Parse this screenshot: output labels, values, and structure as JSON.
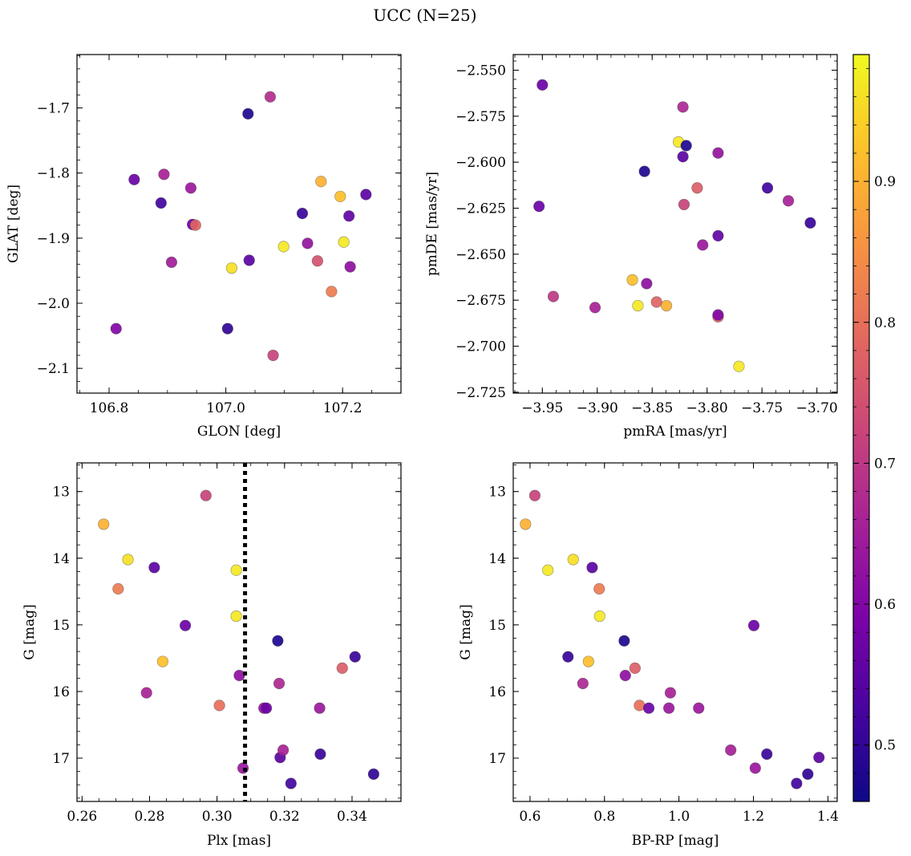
{
  "figure": {
    "title": "UCC (N=25)",
    "colormap": "plasma",
    "colorbar": {
      "range": [
        0.46,
        0.99
      ],
      "ticks": [
        0.5,
        0.6,
        0.7,
        0.8,
        0.9
      ],
      "tick_labels": [
        "0.5",
        "0.6",
        "0.7",
        "0.8",
        "0.9"
      ]
    }
  },
  "chart_data": [
    {
      "type": "scatter",
      "id": "panel-glon-glat",
      "xlabel": "GLON [deg]",
      "ylabel": "GLAT [deg]",
      "xlim": [
        106.745,
        107.3
      ],
      "ylim": [
        -2.138,
        -1.618
      ],
      "xticks": [
        106.8,
        107.0,
        107.2
      ],
      "xtick_labels": [
        "106.8",
        "107.0",
        "107.2"
      ],
      "yticks": [
        -2.1,
        -2.0,
        -1.9,
        -1.8,
        -1.7
      ],
      "ytick_labels": [
        "−2.1",
        "−2.0",
        "−1.9",
        "−1.8",
        "−1.7"
      ],
      "invert_y": false,
      "points": [
        {
          "x": 106.812,
          "y": -2.039,
          "c": 0.6
        },
        {
          "x": 106.843,
          "y": -1.81,
          "c": 0.57
        },
        {
          "x": 106.889,
          "y": -1.846,
          "c": 0.52
        },
        {
          "x": 106.894,
          "y": -1.802,
          "c": 0.66
        },
        {
          "x": 106.907,
          "y": -1.937,
          "c": 0.65
        },
        {
          "x": 106.94,
          "y": -1.823,
          "c": 0.64
        },
        {
          "x": 106.943,
          "y": -1.879,
          "c": 0.57
        },
        {
          "x": 106.948,
          "y": -1.88,
          "c": 0.78
        },
        {
          "x": 107.003,
          "y": -2.039,
          "c": 0.5
        },
        {
          "x": 107.01,
          "y": -1.946,
          "c": 0.96
        },
        {
          "x": 107.038,
          "y": -1.709,
          "c": 0.48
        },
        {
          "x": 107.04,
          "y": -1.934,
          "c": 0.55
        },
        {
          "x": 107.076,
          "y": -1.683,
          "c": 0.68
        },
        {
          "x": 107.081,
          "y": -2.08,
          "c": 0.72
        },
        {
          "x": 107.099,
          "y": -1.913,
          "c": 0.97
        },
        {
          "x": 107.131,
          "y": -1.862,
          "c": 0.51
        },
        {
          "x": 107.14,
          "y": -1.908,
          "c": 0.63
        },
        {
          "x": 107.157,
          "y": -1.935,
          "c": 0.75
        },
        {
          "x": 107.163,
          "y": -1.813,
          "c": 0.9
        },
        {
          "x": 107.181,
          "y": -1.982,
          "c": 0.82
        },
        {
          "x": 107.196,
          "y": -1.836,
          "c": 0.92
        },
        {
          "x": 107.202,
          "y": -1.906,
          "c": 0.97
        },
        {
          "x": 107.211,
          "y": -1.866,
          "c": 0.56
        },
        {
          "x": 107.213,
          "y": -1.944,
          "c": 0.62
        },
        {
          "x": 107.24,
          "y": -1.833,
          "c": 0.55
        }
      ]
    },
    {
      "type": "scatter",
      "id": "panel-pmra-pmde",
      "xlabel": "pmRA [mas/yr]",
      "ylabel": "pmDE [mas/yr]",
      "xlim": [
        -3.9765,
        -3.6815
      ],
      "ylim": [
        -2.7255,
        -2.5415
      ],
      "xticks": [
        -3.95,
        -3.9,
        -3.85,
        -3.8,
        -3.75,
        -3.7
      ],
      "xtick_labels": [
        "−3.95",
        "−3.90",
        "−3.85",
        "−3.80",
        "−3.75",
        "−3.70"
      ],
      "yticks": [
        -2.725,
        -2.7,
        -2.675,
        -2.65,
        -2.625,
        -2.6,
        -2.575,
        -2.55
      ],
      "ytick_labels": [
        "−2.725",
        "−2.700",
        "−2.675",
        "−2.650",
        "−2.625",
        "−2.600",
        "−2.575",
        "−2.550"
      ],
      "invert_y": false,
      "points": [
        {
          "x": -3.95,
          "y": -2.558,
          "c": 0.57
        },
        {
          "x": -3.953,
          "y": -2.624,
          "c": 0.57
        },
        {
          "x": -3.94,
          "y": -2.673,
          "c": 0.7
        },
        {
          "x": -3.902,
          "y": -2.679,
          "c": 0.66
        },
        {
          "x": -3.868,
          "y": -2.664,
          "c": 0.92
        },
        {
          "x": -3.863,
          "y": -2.678,
          "c": 0.97
        },
        {
          "x": -3.857,
          "y": -2.605,
          "c": 0.48
        },
        {
          "x": -3.855,
          "y": -2.666,
          "c": 0.62
        },
        {
          "x": -3.846,
          "y": -2.676,
          "c": 0.78
        },
        {
          "x": -3.837,
          "y": -2.678,
          "c": 0.9
        },
        {
          "x": -3.826,
          "y": -2.589,
          "c": 0.97
        },
        {
          "x": -3.822,
          "y": -2.57,
          "c": 0.67
        },
        {
          "x": -3.822,
          "y": -2.597,
          "c": 0.55
        },
        {
          "x": -3.821,
          "y": -2.623,
          "c": 0.72
        },
        {
          "x": -3.819,
          "y": -2.591,
          "c": 0.48
        },
        {
          "x": -3.809,
          "y": -2.614,
          "c": 0.77
        },
        {
          "x": -3.804,
          "y": -2.645,
          "c": 0.64
        },
        {
          "x": -3.79,
          "y": -2.595,
          "c": 0.63
        },
        {
          "x": -3.79,
          "y": -2.64,
          "c": 0.56
        },
        {
          "x": -3.79,
          "y": -2.684,
          "c": 0.78
        },
        {
          "x": -3.79,
          "y": -2.683,
          "c": 0.6
        },
        {
          "x": -3.771,
          "y": -2.711,
          "c": 0.97
        },
        {
          "x": -3.745,
          "y": -2.614,
          "c": 0.52
        },
        {
          "x": -3.726,
          "y": -2.621,
          "c": 0.66
        },
        {
          "x": -3.706,
          "y": -2.633,
          "c": 0.51
        }
      ]
    },
    {
      "type": "scatter",
      "id": "panel-plx-g",
      "xlabel": "Plx [mas]",
      "ylabel": "G [mag]",
      "xlim": [
        0.2585,
        0.3545
      ],
      "ylim": [
        12.57,
        17.65
      ],
      "xticks": [
        0.26,
        0.28,
        0.3,
        0.32,
        0.34
      ],
      "xtick_labels": [
        "0.26",
        "0.28",
        "0.30",
        "0.32",
        "0.34"
      ],
      "yticks": [
        13,
        14,
        15,
        16,
        17
      ],
      "ytick_labels": [
        "13",
        "14",
        "15",
        "16",
        "17"
      ],
      "invert_y": true,
      "vline": 0.3083,
      "points": [
        {
          "x": 0.2664,
          "y": 13.49,
          "c": 0.9
        },
        {
          "x": 0.2736,
          "y": 14.02,
          "c": 0.96
        },
        {
          "x": 0.2707,
          "y": 14.46,
          "c": 0.82
        },
        {
          "x": 0.2814,
          "y": 14.14,
          "c": 0.55
        },
        {
          "x": 0.2839,
          "y": 15.55,
          "c": 0.92
        },
        {
          "x": 0.2906,
          "y": 15.01,
          "c": 0.57
        },
        {
          "x": 0.2791,
          "y": 16.02,
          "c": 0.66
        },
        {
          "x": 0.2967,
          "y": 13.06,
          "c": 0.72
        },
        {
          "x": 0.3007,
          "y": 16.21,
          "c": 0.8
        },
        {
          "x": 0.3057,
          "y": 14.18,
          "c": 0.97
        },
        {
          "x": 0.3057,
          "y": 14.87,
          "c": 0.97
        },
        {
          "x": 0.3066,
          "y": 15.76,
          "c": 0.62
        },
        {
          "x": 0.3077,
          "y": 17.15,
          "c": 0.64
        },
        {
          "x": 0.3139,
          "y": 16.25,
          "c": 0.64
        },
        {
          "x": 0.3146,
          "y": 16.25,
          "c": 0.57
        },
        {
          "x": 0.318,
          "y": 15.24,
          "c": 0.48
        },
        {
          "x": 0.3184,
          "y": 15.88,
          "c": 0.67
        },
        {
          "x": 0.3187,
          "y": 16.99,
          "c": 0.55
        },
        {
          "x": 0.3196,
          "y": 16.88,
          "c": 0.66
        },
        {
          "x": 0.3219,
          "y": 17.38,
          "c": 0.52
        },
        {
          "x": 0.3304,
          "y": 16.25,
          "c": 0.64
        },
        {
          "x": 0.3306,
          "y": 16.94,
          "c": 0.51
        },
        {
          "x": 0.3371,
          "y": 15.65,
          "c": 0.77
        },
        {
          "x": 0.3409,
          "y": 15.48,
          "c": 0.51
        },
        {
          "x": 0.3464,
          "y": 17.24,
          "c": 0.5
        }
      ]
    },
    {
      "type": "scatter",
      "id": "panel-bprp-g",
      "xlabel": "BP-RP [mag]",
      "ylabel": "G [mag]",
      "xlim": [
        0.555,
        1.425
      ],
      "ylim": [
        12.57,
        17.65
      ],
      "xticks": [
        0.6,
        0.8,
        1.0,
        1.2,
        1.4
      ],
      "xtick_labels": [
        "0.6",
        "0.8",
        "1.0",
        "1.2",
        "1.4"
      ],
      "yticks": [
        13,
        14,
        15,
        16,
        17
      ],
      "ytick_labels": [
        "13",
        "14",
        "15",
        "16",
        "17"
      ],
      "invert_y": true,
      "points": [
        {
          "x": 0.588,
          "y": 13.49,
          "c": 0.9
        },
        {
          "x": 0.613,
          "y": 13.06,
          "c": 0.72
        },
        {
          "x": 0.648,
          "y": 14.18,
          "c": 0.97
        },
        {
          "x": 0.716,
          "y": 14.02,
          "c": 0.96
        },
        {
          "x": 0.767,
          "y": 14.14,
          "c": 0.55
        },
        {
          "x": 0.786,
          "y": 14.46,
          "c": 0.82
        },
        {
          "x": 0.787,
          "y": 14.87,
          "c": 0.97
        },
        {
          "x": 0.702,
          "y": 15.48,
          "c": 0.51
        },
        {
          "x": 0.757,
          "y": 15.55,
          "c": 0.92
        },
        {
          "x": 0.742,
          "y": 15.88,
          "c": 0.67
        },
        {
          "x": 0.853,
          "y": 15.24,
          "c": 0.48
        },
        {
          "x": 0.856,
          "y": 15.76,
          "c": 0.62
        },
        {
          "x": 0.882,
          "y": 15.65,
          "c": 0.77
        },
        {
          "x": 0.894,
          "y": 16.21,
          "c": 0.8
        },
        {
          "x": 0.919,
          "y": 16.25,
          "c": 0.57
        },
        {
          "x": 0.973,
          "y": 16.25,
          "c": 0.64
        },
        {
          "x": 0.977,
          "y": 16.02,
          "c": 0.66
        },
        {
          "x": 1.053,
          "y": 16.25,
          "c": 0.64
        },
        {
          "x": 1.201,
          "y": 15.01,
          "c": 0.57
        },
        {
          "x": 1.139,
          "y": 16.88,
          "c": 0.66
        },
        {
          "x": 1.205,
          "y": 17.15,
          "c": 0.64
        },
        {
          "x": 1.236,
          "y": 16.94,
          "c": 0.51
        },
        {
          "x": 1.316,
          "y": 17.38,
          "c": 0.52
        },
        {
          "x": 1.346,
          "y": 17.24,
          "c": 0.5
        },
        {
          "x": 1.376,
          "y": 16.99,
          "c": 0.55
        }
      ]
    }
  ]
}
